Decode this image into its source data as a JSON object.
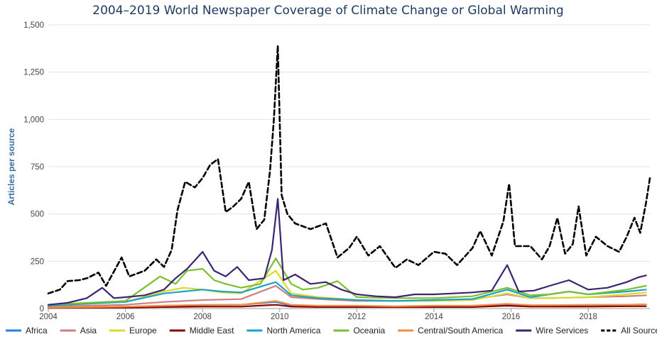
{
  "chart_data": {
    "type": "line",
    "title": "2004–2019 World Newspaper Coverage of Climate Change or Global Warming",
    "xlabel": "",
    "ylabel": "Articles per source",
    "xlim": [
      2004,
      2019.6
    ],
    "ylim": [
      0,
      1500
    ],
    "x_ticks": [
      2004,
      2006,
      2008,
      2010,
      2012,
      2014,
      2016,
      2018
    ],
    "x_tick_labels": [
      "2004",
      "2006",
      "2008",
      "2010",
      "2012",
      "2014",
      "2016",
      "2018"
    ],
    "y_ticks": [
      0,
      250,
      500,
      750,
      1000,
      1250,
      1500
    ],
    "y_tick_labels": [
      "0",
      "250",
      "500",
      "750",
      "1,000",
      "1,250",
      "1,500"
    ],
    "grid": "horizontal",
    "legend_position": "bottom",
    "series": [
      {
        "name": "Africa",
        "color": "#2f7ed8",
        "style": "solid",
        "points": [
          [
            2004,
            5
          ],
          [
            2005,
            8
          ],
          [
            2006,
            10
          ],
          [
            2007,
            15
          ],
          [
            2008,
            18
          ],
          [
            2009,
            20
          ],
          [
            2009.9,
            35
          ],
          [
            2010.3,
            15
          ],
          [
            2011,
            12
          ],
          [
            2012,
            10
          ],
          [
            2013,
            10
          ],
          [
            2014,
            12
          ],
          [
            2015,
            15
          ],
          [
            2015.9,
            22
          ],
          [
            2016.5,
            15
          ],
          [
            2017,
            15
          ],
          [
            2018,
            18
          ],
          [
            2019,
            20
          ],
          [
            2019.5,
            22
          ]
        ]
      },
      {
        "name": "Asia",
        "color": "#cd7f7f",
        "style": "solid",
        "points": [
          [
            2004,
            10
          ],
          [
            2005,
            15
          ],
          [
            2006,
            20
          ],
          [
            2007,
            35
          ],
          [
            2008,
            45
          ],
          [
            2009,
            50
          ],
          [
            2009.9,
            120
          ],
          [
            2010.3,
            60
          ],
          [
            2011,
            50
          ],
          [
            2012,
            40
          ],
          [
            2013,
            40
          ],
          [
            2014,
            45
          ],
          [
            2015,
            50
          ],
          [
            2015.9,
            75
          ],
          [
            2016.5,
            55
          ],
          [
            2017,
            55
          ],
          [
            2018,
            60
          ],
          [
            2019,
            65
          ],
          [
            2019.5,
            70
          ]
        ]
      },
      {
        "name": "Europe",
        "color": "#dada2a",
        "style": "solid",
        "points": [
          [
            2004,
            15
          ],
          [
            2005,
            25
          ],
          [
            2006,
            35
          ],
          [
            2007,
            90
          ],
          [
            2007.5,
            110
          ],
          [
            2008,
            100
          ],
          [
            2008.5,
            85
          ],
          [
            2009,
            80
          ],
          [
            2009.9,
            200
          ],
          [
            2010.3,
            80
          ],
          [
            2011,
            60
          ],
          [
            2012,
            45
          ],
          [
            2013,
            40
          ],
          [
            2014,
            40
          ],
          [
            2015,
            45
          ],
          [
            2015.9,
            80
          ],
          [
            2016.5,
            55
          ],
          [
            2017,
            55
          ],
          [
            2018,
            60
          ],
          [
            2019,
            75
          ],
          [
            2019.5,
            85
          ]
        ]
      },
      {
        "name": "Middle East",
        "color": "#8b0000",
        "style": "solid",
        "points": [
          [
            2004,
            3
          ],
          [
            2005,
            5
          ],
          [
            2006,
            5
          ],
          [
            2007,
            8
          ],
          [
            2008,
            10
          ],
          [
            2009,
            10
          ],
          [
            2009.9,
            20
          ],
          [
            2010.3,
            10
          ],
          [
            2011,
            8
          ],
          [
            2012,
            8
          ],
          [
            2013,
            8
          ],
          [
            2014,
            8
          ],
          [
            2015,
            8
          ],
          [
            2015.9,
            15
          ],
          [
            2016.5,
            10
          ],
          [
            2017,
            10
          ],
          [
            2018,
            10
          ],
          [
            2019,
            12
          ],
          [
            2019.5,
            12
          ]
        ]
      },
      {
        "name": "North America",
        "color": "#1aa3c8",
        "style": "solid",
        "points": [
          [
            2004,
            15
          ],
          [
            2005,
            25
          ],
          [
            2006,
            35
          ],
          [
            2007,
            80
          ],
          [
            2008,
            100
          ],
          [
            2008.5,
            90
          ],
          [
            2009,
            85
          ],
          [
            2009.9,
            140
          ],
          [
            2010.3,
            70
          ],
          [
            2011,
            55
          ],
          [
            2012,
            45
          ],
          [
            2013,
            40
          ],
          [
            2014,
            45
          ],
          [
            2015,
            50
          ],
          [
            2015.9,
            100
          ],
          [
            2016.5,
            60
          ],
          [
            2017,
            75
          ],
          [
            2017.5,
            90
          ],
          [
            2018,
            75
          ],
          [
            2019,
            90
          ],
          [
            2019.5,
            100
          ]
        ]
      },
      {
        "name": "Oceania",
        "color": "#7cbf2e",
        "style": "solid",
        "points": [
          [
            2004,
            20
          ],
          [
            2005,
            30
          ],
          [
            2006,
            40
          ],
          [
            2006.9,
            170
          ],
          [
            2007.3,
            130
          ],
          [
            2007.6,
            200
          ],
          [
            2008,
            210
          ],
          [
            2008.3,
            150
          ],
          [
            2008.6,
            130
          ],
          [
            2009,
            110
          ],
          [
            2009.5,
            130
          ],
          [
            2009.9,
            265
          ],
          [
            2010.3,
            130
          ],
          [
            2010.6,
            100
          ],
          [
            2011,
            110
          ],
          [
            2011.5,
            145
          ],
          [
            2012,
            60
          ],
          [
            2013,
            55
          ],
          [
            2014,
            55
          ],
          [
            2015,
            65
          ],
          [
            2015.9,
            110
          ],
          [
            2016.5,
            70
          ],
          [
            2017,
            75
          ],
          [
            2017.5,
            90
          ],
          [
            2018,
            75
          ],
          [
            2019,
            100
          ],
          [
            2019.5,
            120
          ]
        ]
      },
      {
        "name": "Central/South America",
        "color": "#f28f43",
        "style": "solid",
        "points": [
          [
            2004,
            5
          ],
          [
            2005,
            8
          ],
          [
            2006,
            10
          ],
          [
            2007,
            15
          ],
          [
            2008,
            20
          ],
          [
            2009,
            20
          ],
          [
            2009.9,
            40
          ],
          [
            2010.3,
            20
          ],
          [
            2011,
            15
          ],
          [
            2012,
            15
          ],
          [
            2013,
            12
          ],
          [
            2014,
            15
          ],
          [
            2015,
            15
          ],
          [
            2015.9,
            25
          ],
          [
            2016.5,
            18
          ],
          [
            2017,
            18
          ],
          [
            2018,
            20
          ],
          [
            2019,
            20
          ],
          [
            2019.5,
            22
          ]
        ]
      },
      {
        "name": "Wire Services",
        "color": "#3d2472",
        "style": "solid",
        "points": [
          [
            2004,
            20
          ],
          [
            2004.5,
            30
          ],
          [
            2005,
            55
          ],
          [
            2005.4,
            110
          ],
          [
            2005.7,
            55
          ],
          [
            2006,
            60
          ],
          [
            2006.5,
            70
          ],
          [
            2007,
            100
          ],
          [
            2007.3,
            160
          ],
          [
            2007.6,
            210
          ],
          [
            2008,
            300
          ],
          [
            2008.3,
            200
          ],
          [
            2008.6,
            170
          ],
          [
            2008.9,
            220
          ],
          [
            2009.2,
            150
          ],
          [
            2009.6,
            160
          ],
          [
            2009.8,
            310
          ],
          [
            2009.95,
            580
          ],
          [
            2010.1,
            150
          ],
          [
            2010.4,
            180
          ],
          [
            2010.8,
            130
          ],
          [
            2011.2,
            140
          ],
          [
            2011.6,
            100
          ],
          [
            2012,
            75
          ],
          [
            2012.5,
            65
          ],
          [
            2013,
            60
          ],
          [
            2013.5,
            75
          ],
          [
            2014,
            75
          ],
          [
            2014.5,
            80
          ],
          [
            2015,
            85
          ],
          [
            2015.5,
            95
          ],
          [
            2015.9,
            230
          ],
          [
            2016.2,
            90
          ],
          [
            2016.6,
            95
          ],
          [
            2017,
            120
          ],
          [
            2017.5,
            150
          ],
          [
            2018,
            100
          ],
          [
            2018.5,
            110
          ],
          [
            2019,
            140
          ],
          [
            2019.3,
            165
          ],
          [
            2019.5,
            175
          ]
        ]
      },
      {
        "name": "All Sources Combined",
        "color": "#000000",
        "style": "dashed",
        "points": [
          [
            2004,
            80
          ],
          [
            2004.3,
            100
          ],
          [
            2004.5,
            145
          ],
          [
            2004.8,
            150
          ],
          [
            2005,
            160
          ],
          [
            2005.3,
            190
          ],
          [
            2005.5,
            120
          ],
          [
            2005.9,
            270
          ],
          [
            2006.1,
            170
          ],
          [
            2006.5,
            200
          ],
          [
            2006.8,
            260
          ],
          [
            2007,
            220
          ],
          [
            2007.2,
            310
          ],
          [
            2007.35,
            520
          ],
          [
            2007.55,
            670
          ],
          [
            2007.8,
            640
          ],
          [
            2008,
            690
          ],
          [
            2008.2,
            760
          ],
          [
            2008.4,
            790
          ],
          [
            2008.6,
            510
          ],
          [
            2008.8,
            540
          ],
          [
            2009,
            580
          ],
          [
            2009.2,
            670
          ],
          [
            2009.4,
            420
          ],
          [
            2009.6,
            470
          ],
          [
            2009.75,
            730
          ],
          [
            2009.85,
            1000
          ],
          [
            2009.95,
            1390
          ],
          [
            2010.05,
            600
          ],
          [
            2010.2,
            500
          ],
          [
            2010.4,
            450
          ],
          [
            2010.8,
            420
          ],
          [
            2011.2,
            450
          ],
          [
            2011.5,
            270
          ],
          [
            2011.8,
            320
          ],
          [
            2012,
            380
          ],
          [
            2012.3,
            280
          ],
          [
            2012.6,
            330
          ],
          [
            2013,
            215
          ],
          [
            2013.3,
            260
          ],
          [
            2013.6,
            230
          ],
          [
            2014,
            300
          ],
          [
            2014.3,
            290
          ],
          [
            2014.6,
            230
          ],
          [
            2015,
            320
          ],
          [
            2015.2,
            410
          ],
          [
            2015.5,
            280
          ],
          [
            2015.8,
            460
          ],
          [
            2015.95,
            660
          ],
          [
            2016.1,
            330
          ],
          [
            2016.5,
            330
          ],
          [
            2016.8,
            260
          ],
          [
            2017,
            330
          ],
          [
            2017.2,
            480
          ],
          [
            2017.4,
            290
          ],
          [
            2017.6,
            340
          ],
          [
            2017.75,
            540
          ],
          [
            2017.95,
            280
          ],
          [
            2018.2,
            380
          ],
          [
            2018.5,
            330
          ],
          [
            2018.8,
            300
          ],
          [
            2019,
            380
          ],
          [
            2019.2,
            480
          ],
          [
            2019.35,
            400
          ],
          [
            2019.5,
            560
          ],
          [
            2019.6,
            690
          ]
        ]
      }
    ]
  }
}
